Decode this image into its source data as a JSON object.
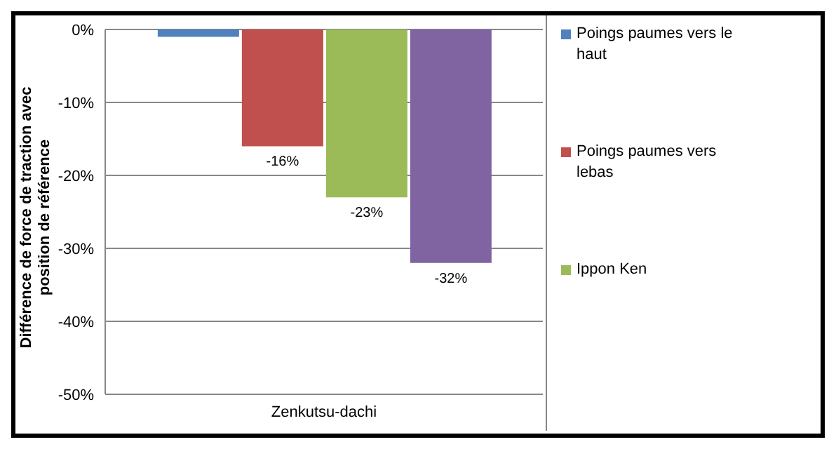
{
  "chart_data": {
    "type": "bar",
    "ylabel": "Différence de force de traction avec position de référence",
    "categories": [
      "Zenkutsu-dachi"
    ],
    "series": [
      {
        "name": "Poings paumes vers le haut",
        "color": "#4f81bd",
        "values": [
          -1
        ],
        "value_labels": [
          null
        ]
      },
      {
        "name": "Poings paumes vers lebas",
        "color": "#c0504d",
        "values": [
          -16
        ],
        "value_labels": [
          "-16%"
        ]
      },
      {
        "name": "Ippon Ken",
        "color": "#9bbb59",
        "values": [
          -23
        ],
        "value_labels": [
          "-23%"
        ]
      },
      {
        "color": "#8064a2",
        "values": [
          -32
        ],
        "value_labels": [
          "-32%"
        ]
      }
    ],
    "ylim": [
      -50,
      0
    ],
    "yticks": [
      {
        "value": -50,
        "label": "-50%"
      },
      {
        "value": -40,
        "label": "-40%"
      },
      {
        "value": -30,
        "label": "-30%"
      },
      {
        "value": -20,
        "label": "-20%"
      },
      {
        "value": -10,
        "label": "-10%"
      },
      {
        "value": 0,
        "label": "0%"
      }
    ],
    "grid": "y",
    "legend": "right"
  }
}
